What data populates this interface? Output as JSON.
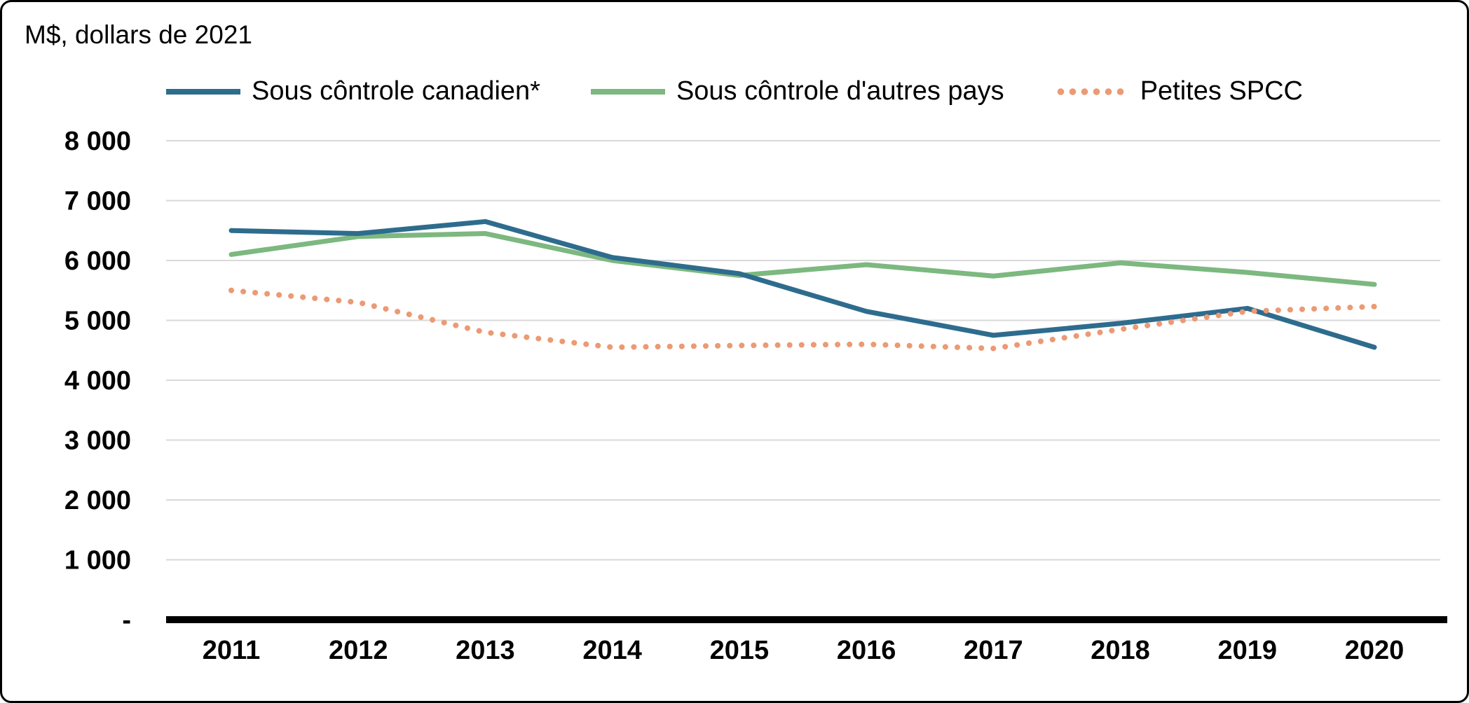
{
  "chart_data": {
    "type": "line",
    "title": "M$, dollars de 2021",
    "x": [
      "2011",
      "2012",
      "2013",
      "2014",
      "2015",
      "2016",
      "2017",
      "2018",
      "2019",
      "2020"
    ],
    "ylim": [
      0,
      8000
    ],
    "grid": true,
    "grid_color": "#D9D9D9",
    "axis_color": "#000000",
    "legend_position": "top",
    "yticks": [
      {
        "v": 0,
        "label": "-"
      },
      {
        "v": 1000,
        "label": "1 000"
      },
      {
        "v": 2000,
        "label": "2 000"
      },
      {
        "v": 3000,
        "label": "3 000"
      },
      {
        "v": 4000,
        "label": "4 000"
      },
      {
        "v": 5000,
        "label": "5 000"
      },
      {
        "v": 6000,
        "label": "6 000"
      },
      {
        "v": 7000,
        "label": "7 000"
      },
      {
        "v": 8000,
        "label": "8 000"
      }
    ],
    "series": [
      {
        "name": "Sous côntrole canadien*",
        "color": "#2E6C8E",
        "style": "solid",
        "values": [
          6500,
          6450,
          6650,
          6050,
          5780,
          5150,
          4750,
          4950,
          5200,
          4550
        ]
      },
      {
        "name": "Sous côntrole d'autres pays",
        "color": "#7CB87F",
        "style": "solid",
        "values": [
          6100,
          6400,
          6450,
          6000,
          5750,
          5930,
          5740,
          5960,
          5800,
          5600
        ]
      },
      {
        "name": "Petites SPCC",
        "color": "#EB9A74",
        "style": "dotted",
        "values": [
          5500,
          5300,
          4800,
          4550,
          4580,
          4600,
          4530,
          4850,
          5150,
          5230
        ]
      }
    ]
  }
}
